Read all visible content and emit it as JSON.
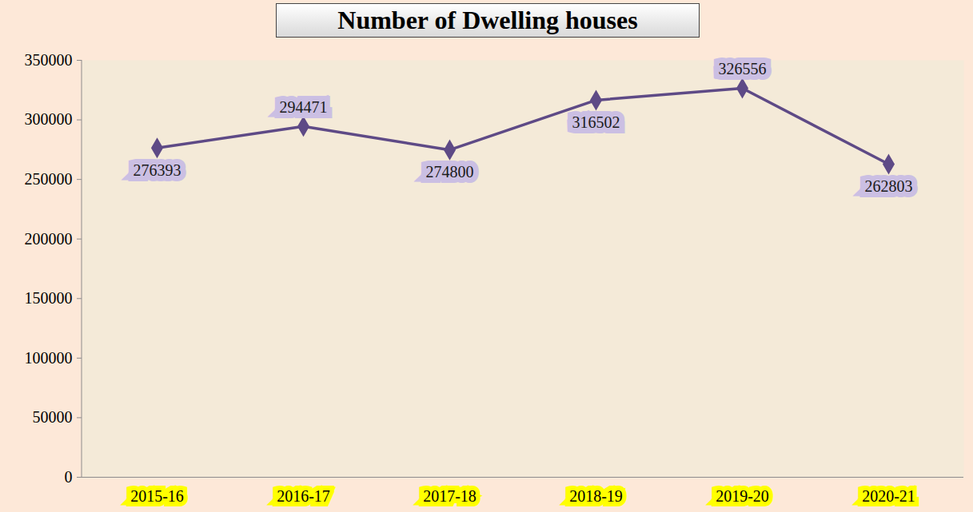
{
  "chart_data": {
    "type": "line",
    "title": "Number of Dwelling houses",
    "categories": [
      "2015-16",
      "2016-17",
      "2017-18",
      "2018-19",
      "2019-20",
      "2020-21"
    ],
    "values": [
      276393,
      294471,
      274800,
      316502,
      326556,
      262803
    ],
    "color": "#5e4a86",
    "marker": "diamond",
    "ylim": [
      0,
      350000
    ],
    "yticks": [
      0,
      50000,
      100000,
      150000,
      200000,
      250000,
      300000,
      350000
    ],
    "grid": false,
    "data_labels": true
  }
}
